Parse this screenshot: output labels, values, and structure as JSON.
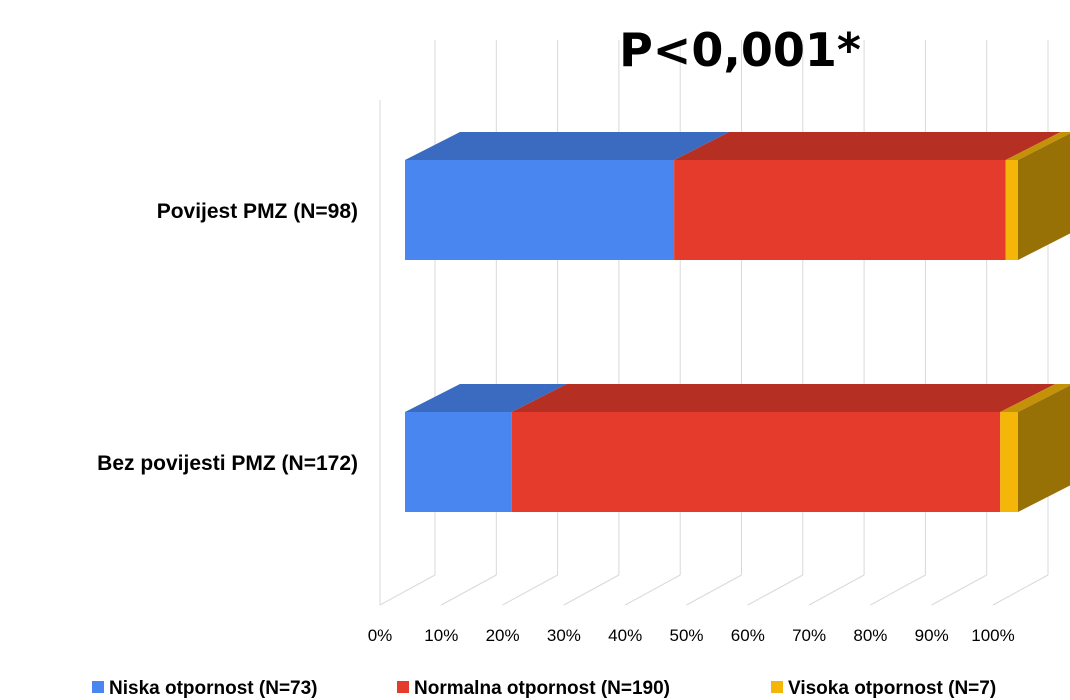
{
  "chart_data": {
    "type": "bar",
    "orientation": "horizontal",
    "stacked": "percent",
    "title": "P<0,001*",
    "xlabel": "",
    "ylabel": "",
    "xlim": [
      0,
      100
    ],
    "x_ticks": [
      "0%",
      "10%",
      "20%",
      "30%",
      "40%",
      "50%",
      "60%",
      "70%",
      "80%",
      "90%",
      "100%"
    ],
    "grid": true,
    "legend_position": "bottom",
    "categories": [
      "Povijest PMZ (N=98)",
      "Bez povijesti PMZ (N=172)"
    ],
    "series": [
      {
        "name": "Niska otpornost (N=73)",
        "values": [
          43.9,
          17.4
        ],
        "color": "#4a86f0"
      },
      {
        "name": "Normalna otpornost (N=190)",
        "values": [
          54.1,
          79.7
        ],
        "color": "#e43b2c"
      },
      {
        "name": "Visoka otpornost (N=7)",
        "values": [
          2.0,
          2.9
        ],
        "color": "#f5b60a"
      }
    ]
  }
}
